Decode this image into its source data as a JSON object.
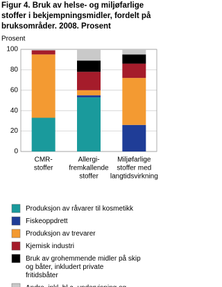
{
  "chart_data": {
    "type": "stacked-bar",
    "title": [
      "Figur 4. Bruk av helse- og miljøfarlige",
      "stoffer i bekjempningsmidler, fordelt på",
      "bruksområder. 2008. Prosent"
    ],
    "y_label": "Prosent",
    "categories": [
      [
        "CMR-",
        "stoffer"
      ],
      [
        "Allergi-",
        "fremkallende",
        "stoffer"
      ],
      [
        "Miljøfarlige",
        "stoffer med",
        "langtidsvirkning"
      ]
    ],
    "series": [
      {
        "name": "Produksjon av råvarer til kosmetikk",
        "color": "#1a9a9c",
        "values": [
          33,
          53,
          0
        ]
      },
      {
        "name": "Fiskeoppdrett",
        "color": "#1f3d97",
        "values": [
          0,
          2,
          26
        ]
      },
      {
        "name": "Produksjon av trevarer",
        "color": "#f39a32",
        "values": [
          62,
          5,
          46
        ]
      },
      {
        "name": "Kjemisk industri",
        "color": "#a51c2b",
        "values": [
          4,
          18,
          14
        ]
      },
      {
        "name": "Bruk av grohemmende midler på skip og båter, inkludert private fritidsbåter",
        "color": "#000000",
        "values": [
          0,
          11,
          9
        ]
      },
      {
        "name": "Andre, inkl. bl.a. undervisning og private husholdninger",
        "color": "#c9c9c9",
        "values": [
          1,
          11,
          5
        ]
      }
    ],
    "ylim": [
      0,
      100
    ],
    "yticks": [
      0,
      20,
      40,
      60,
      80,
      100
    ],
    "grid": true
  }
}
